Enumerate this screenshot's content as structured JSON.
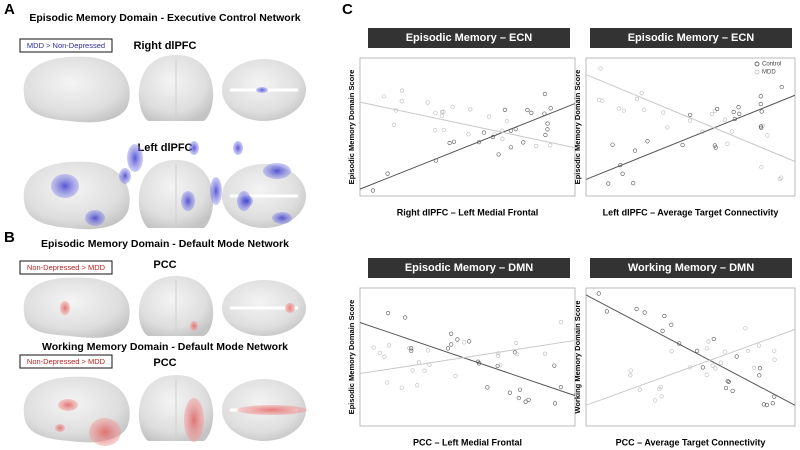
{
  "panel_a": {
    "label": "A",
    "title": "Episodic Memory Domain -  Executive Control Network",
    "contrast": "MDD > Non-Depressed",
    "regions": [
      "Right dlPFC",
      "Left dlPFC"
    ]
  },
  "panel_b": {
    "label": "B",
    "sections": [
      {
        "title": "Episodic Memory Domain -  Default Mode Network",
        "contrast": "Non-Depressed > MDD",
        "region": "PCC"
      },
      {
        "title": "Working Memory Domain -  Default Mode Network",
        "contrast": "Non-Depressed > MDD",
        "region": "PCC"
      }
    ]
  },
  "panel_c": {
    "label": "C",
    "legend": [
      "Control",
      "MDD"
    ],
    "plots": [
      {
        "title": "Episodic Memory –  ECN",
        "x_label": "Right dlPFC – Left Medial Frontal",
        "y_label": "Episodic Memory Domain Score"
      },
      {
        "title": "Episodic Memory –  ECN",
        "x_label": "Left dlPFC – Average Target Connectivity",
        "y_label": "Episodic Memory Domain Score"
      },
      {
        "title": "Episodic Memory –  DMN",
        "x_label": "PCC – Left Medial Frontal",
        "y_label": "Episodic Memory Domain Score"
      },
      {
        "title": "Working Memory –  DMN",
        "x_label": "PCC – Average Target Connectivity",
        "y_label": "Working Memory Domain Score"
      }
    ]
  }
}
